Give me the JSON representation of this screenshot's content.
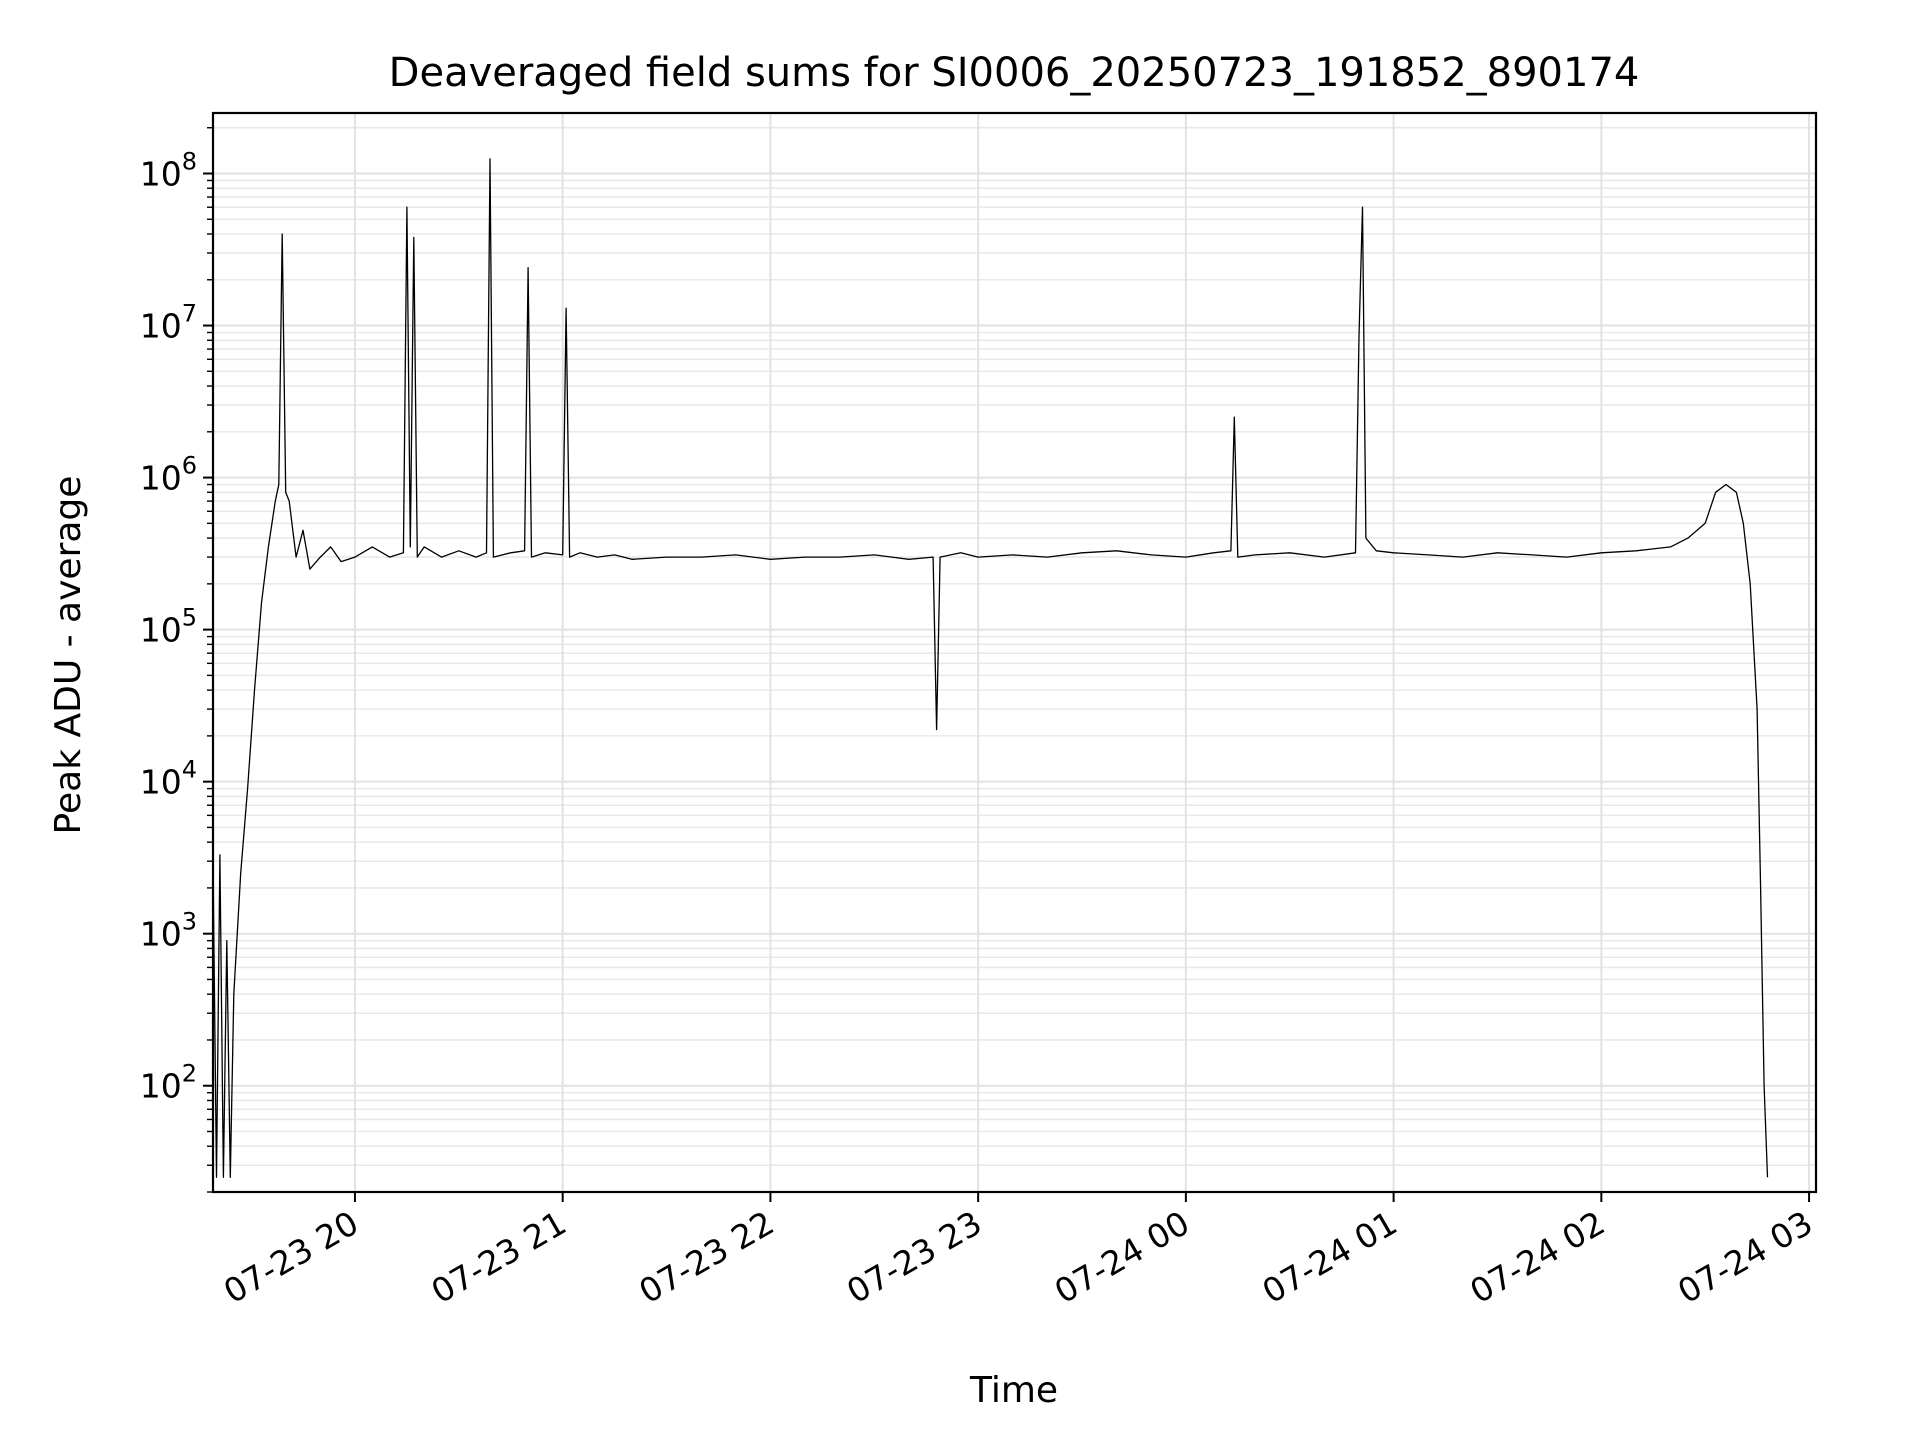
{
  "chart_data": {
    "type": "line",
    "title": "Deaveraged field sums for SI0006_20250723_191852_890174",
    "xlabel": "Time",
    "ylabel": "Peak ADU - average",
    "yscale": "log",
    "ylim": [
      20,
      250000000
    ],
    "xlim": [
      "2025-07-23 19:19",
      "2025-07-24 03:02"
    ],
    "grid": true,
    "x_ticks": [
      {
        "value": "2025-07-23 20:00",
        "label": "07-23 20"
      },
      {
        "value": "2025-07-23 21:00",
        "label": "07-23 21"
      },
      {
        "value": "2025-07-23 22:00",
        "label": "07-23 22"
      },
      {
        "value": "2025-07-23 23:00",
        "label": "07-23 23"
      },
      {
        "value": "2025-07-24 00:00",
        "label": "07-24 00"
      },
      {
        "value": "2025-07-24 01:00",
        "label": "07-24 01"
      },
      {
        "value": "2025-07-24 02:00",
        "label": "07-24 02"
      },
      {
        "value": "2025-07-24 03:00",
        "label": "07-24 03"
      }
    ],
    "y_ticks": [
      {
        "value": 100,
        "base": "10",
        "exp": "2"
      },
      {
        "value": 1000,
        "base": "10",
        "exp": "3"
      },
      {
        "value": 10000,
        "base": "10",
        "exp": "4"
      },
      {
        "value": 100000,
        "base": "10",
        "exp": "5"
      },
      {
        "value": 1000000,
        "base": "10",
        "exp": "6"
      },
      {
        "value": 10000000,
        "base": "10",
        "exp": "7"
      },
      {
        "value": 100000000,
        "base": "10",
        "exp": "8"
      }
    ],
    "series": [
      {
        "color": "#000000",
        "x": [
          "2025-07-23 19:19",
          "2025-07-23 19:20",
          "2025-07-23 19:21",
          "2025-07-23 19:22",
          "2025-07-23 19:23",
          "2025-07-23 19:24",
          "2025-07-23 19:25",
          "2025-07-23 19:27",
          "2025-07-23 19:29",
          "2025-07-23 19:31",
          "2025-07-23 19:33",
          "2025-07-23 19:35",
          "2025-07-23 19:37",
          "2025-07-23 19:38",
          "2025-07-23 19:39",
          "2025-07-23 19:40",
          "2025-07-23 19:41",
          "2025-07-23 19:43",
          "2025-07-23 19:45",
          "2025-07-23 19:47",
          "2025-07-23 19:50",
          "2025-07-23 19:53",
          "2025-07-23 19:56",
          "2025-07-23 20:00",
          "2025-07-23 20:05",
          "2025-07-23 20:10",
          "2025-07-23 20:14",
          "2025-07-23 20:15",
          "2025-07-23 20:16",
          "2025-07-23 20:17",
          "2025-07-23 20:18",
          "2025-07-23 20:20",
          "2025-07-23 20:25",
          "2025-07-23 20:30",
          "2025-07-23 20:35",
          "2025-07-23 20:38",
          "2025-07-23 20:39",
          "2025-07-23 20:40",
          "2025-07-23 20:45",
          "2025-07-23 20:49",
          "2025-07-23 20:50",
          "2025-07-23 20:51",
          "2025-07-23 20:55",
          "2025-07-23 21:00",
          "2025-07-23 21:01",
          "2025-07-23 21:02",
          "2025-07-23 21:05",
          "2025-07-23 21:10",
          "2025-07-23 21:15",
          "2025-07-23 21:20",
          "2025-07-23 21:30",
          "2025-07-23 21:40",
          "2025-07-23 21:50",
          "2025-07-23 22:00",
          "2025-07-23 22:10",
          "2025-07-23 22:20",
          "2025-07-23 22:30",
          "2025-07-23 22:40",
          "2025-07-23 22:47",
          "2025-07-23 22:48",
          "2025-07-23 22:49",
          "2025-07-23 22:55",
          "2025-07-23 23:00",
          "2025-07-23 23:10",
          "2025-07-23 23:20",
          "2025-07-23 23:30",
          "2025-07-23 23:40",
          "2025-07-23 23:50",
          "2025-07-24 00:00",
          "2025-07-24 00:08",
          "2025-07-24 00:13",
          "2025-07-24 00:14",
          "2025-07-24 00:15",
          "2025-07-24 00:20",
          "2025-07-24 00:30",
          "2025-07-24 00:40",
          "2025-07-24 00:49",
          "2025-07-24 00:50",
          "2025-07-24 00:51",
          "2025-07-24 00:52",
          "2025-07-24 00:55",
          "2025-07-24 01:00",
          "2025-07-24 01:10",
          "2025-07-24 01:20",
          "2025-07-24 01:30",
          "2025-07-24 01:40",
          "2025-07-24 01:50",
          "2025-07-24 02:00",
          "2025-07-24 02:10",
          "2025-07-24 02:20",
          "2025-07-24 02:25",
          "2025-07-24 02:30",
          "2025-07-24 02:33",
          "2025-07-24 02:36",
          "2025-07-24 02:39",
          "2025-07-24 02:41",
          "2025-07-24 02:43",
          "2025-07-24 02:45",
          "2025-07-24 02:46",
          "2025-07-24 02:47",
          "2025-07-24 02:48"
        ],
        "y": [
          3000,
          25,
          3300,
          25,
          900,
          25,
          400,
          2500,
          9000,
          40000,
          150000,
          350000,
          700000,
          900000,
          40000000,
          800000,
          700000,
          300000,
          450000,
          250000,
          300000,
          350000,
          280000,
          300000,
          350000,
          300000,
          320000,
          60000000,
          350000,
          38000000,
          300000,
          350000,
          300000,
          330000,
          300000,
          320000,
          125000000,
          300000,
          320000,
          330000,
          24000000,
          300000,
          320000,
          310000,
          13000000,
          300000,
          320000,
          300000,
          310000,
          290000,
          300000,
          300000,
          310000,
          290000,
          300000,
          300000,
          310000,
          290000,
          300000,
          22000,
          300000,
          320000,
          300000,
          310000,
          300000,
          320000,
          330000,
          310000,
          300000,
          320000,
          330000,
          2500000,
          300000,
          310000,
          320000,
          300000,
          320000,
          8500000,
          60000000,
          400000,
          330000,
          320000,
          310000,
          300000,
          320000,
          310000,
          300000,
          320000,
          330000,
          350000,
          400000,
          500000,
          800000,
          900000,
          800000,
          500000,
          200000,
          30000,
          2000,
          100,
          25
        ]
      }
    ]
  }
}
